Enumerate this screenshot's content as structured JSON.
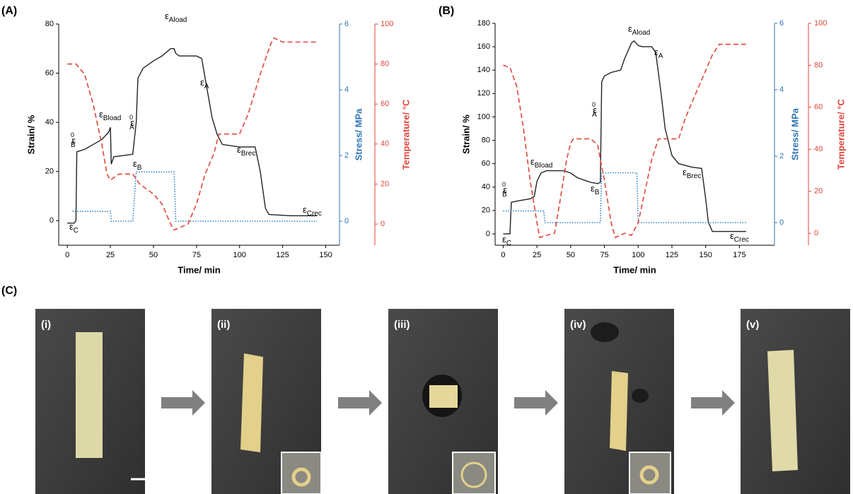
{
  "chart_data": [
    {
      "type": "line",
      "panel_label": "(A)",
      "xlabel": "Time/ min",
      "ylabel": "Strain/ %",
      "y2label": "Stress/ MPa",
      "y3label": "Temperature/ °C",
      "xlim": [
        -5,
        158
      ],
      "xticks": [
        0,
        25,
        50,
        75,
        100,
        125,
        150
      ],
      "ylim": [
        -10,
        80
      ],
      "yticks": [
        0,
        20,
        40,
        60,
        80
      ],
      "y2lim": [
        -0.73,
        6
      ],
      "y2ticks": [
        0,
        2,
        4,
        6
      ],
      "y2color": "#2e75b6",
      "y3lim": [
        -10.6,
        100
      ],
      "y3ticks": [
        0,
        20,
        40,
        60,
        80,
        100
      ],
      "y3color": "#e0453a",
      "series": [
        {
          "color": "#222222",
          "style": "solid",
          "axis": "y",
          "x": [
            0,
            4,
            5,
            5.5,
            10,
            20,
            24,
            25,
            25.5,
            27,
            38,
            40,
            41,
            44,
            50,
            55,
            60,
            62,
            63,
            65,
            75,
            78,
            80,
            84,
            87,
            90,
            100,
            109,
            112,
            115,
            117,
            130,
            145
          ],
          "values": [
            -1,
            -1,
            0,
            28,
            29,
            33,
            36,
            38,
            23,
            26,
            27,
            40,
            58,
            62,
            65,
            67,
            70,
            70,
            68,
            67,
            67,
            66,
            58,
            42,
            35,
            31,
            30,
            30,
            20,
            5,
            2.5,
            2,
            2
          ]
        },
        {
          "color": "#2a7fc1",
          "style": "dotted",
          "axis": "y2",
          "x": [
            3,
            25,
            25.5,
            38,
            40,
            62,
            63,
            145
          ],
          "values": [
            0.3,
            0.3,
            0,
            0,
            1.5,
            1.5,
            0,
            0
          ]
        },
        {
          "color": "#e0453a",
          "style": "dashed",
          "axis": "y3",
          "x": [
            0,
            5,
            10,
            15,
            20,
            23,
            25,
            30,
            38,
            42,
            50,
            55,
            60,
            62,
            70,
            75,
            80,
            85,
            88,
            100,
            105,
            112,
            118,
            120,
            125,
            145
          ],
          "values": [
            80,
            80,
            75,
            60,
            40,
            25,
            22,
            25,
            25,
            20,
            15,
            10,
            0,
            -3,
            0,
            10,
            25,
            35,
            45,
            45,
            55,
            75,
            90,
            93,
            91,
            91
          ]
        }
      ],
      "annotations": [
        {
          "base": "ε",
          "sub": "B",
          "sup": "0"
        },
        {
          "base": "ε",
          "sub": "Bload"
        },
        {
          "base": "ε",
          "sub": "B"
        },
        {
          "base": "ε",
          "sub": "A",
          "sup": "0"
        },
        {
          "base": "ε",
          "sub": "Aload"
        },
        {
          "base": "ε",
          "sub": "A"
        },
        {
          "base": "ε",
          "sub": "Brec"
        },
        {
          "base": "ε",
          "sub": "Crec"
        },
        {
          "base": "ε",
          "sub": "C"
        }
      ]
    },
    {
      "type": "line",
      "panel_label": "(B)",
      "xlabel": "Time/ min",
      "ylabel": "Strain/ %",
      "y2label": "Stress/ MPa",
      "y3label": "Temperature/ °C",
      "xlim": [
        -6,
        201
      ],
      "xticks": [
        0,
        25,
        50,
        75,
        100,
        125,
        150,
        175
      ],
      "ylim": [
        -9.7,
        180
      ],
      "yticks": [
        0,
        20,
        40,
        60,
        80,
        100,
        120,
        140,
        160,
        180
      ],
      "y2lim": [
        -0.68,
        6
      ],
      "y2ticks": [
        0,
        2,
        4,
        6
      ],
      "y2color": "#2e75b6",
      "y3lim": [
        -5.7,
        100
      ],
      "y3ticks": [
        0,
        20,
        40,
        60,
        80,
        100
      ],
      "y3color": "#e0453a",
      "series": [
        {
          "color": "#222222",
          "style": "solid",
          "axis": "y",
          "x": [
            0,
            5,
            6,
            10,
            20,
            23,
            25,
            28,
            32,
            45,
            50,
            55,
            60,
            65,
            70,
            72,
            73,
            75,
            80,
            87,
            90,
            95,
            97,
            100,
            103,
            110,
            113,
            117,
            120,
            125,
            130,
            140,
            147,
            150,
            152,
            155,
            180
          ],
          "values": [
            0,
            0,
            27,
            28,
            30,
            32,
            45,
            52,
            54,
            54,
            52,
            48,
            46,
            44,
            43,
            44,
            130,
            135,
            138,
            140,
            150,
            163,
            165,
            161,
            160,
            160,
            155,
            120,
            90,
            67,
            60,
            57,
            56,
            30,
            10,
            2,
            2
          ]
        },
        {
          "color": "#2a7fc1",
          "style": "dotted",
          "axis": "y2",
          "x": [
            0,
            30,
            31,
            72,
            73,
            99,
            100,
            180
          ],
          "values": [
            0.35,
            0.35,
            0,
            0,
            1.5,
            1.5,
            0,
            0
          ]
        },
        {
          "color": "#e0453a",
          "style": "dashed",
          "axis": "y3",
          "x": [
            0,
            5,
            10,
            15,
            20,
            25,
            27,
            32,
            38,
            42,
            47,
            50,
            52,
            65,
            70,
            75,
            80,
            83,
            90,
            95,
            100,
            105,
            110,
            115,
            130,
            135,
            145,
            155,
            160,
            165,
            180
          ],
          "values": [
            80,
            79,
            70,
            50,
            25,
            5,
            -2,
            -1,
            0,
            15,
            35,
            43,
            45,
            45,
            42,
            25,
            5,
            -2,
            0,
            -1,
            5,
            20,
            35,
            45,
            45,
            55,
            70,
            85,
            90,
            90,
            90
          ]
        }
      ],
      "annotations": [
        {
          "base": "ε",
          "sub": "B",
          "sup": "0"
        },
        {
          "base": "ε",
          "sub": "Bload"
        },
        {
          "base": "ε",
          "sub": "B"
        },
        {
          "base": "ε",
          "sub": "A",
          "sup": "0"
        },
        {
          "base": "ε",
          "sub": "Aload"
        },
        {
          "base": "ε",
          "sub": "A"
        },
        {
          "base": "ε",
          "sub": "Brec"
        },
        {
          "base": "ε",
          "sub": "Crec"
        },
        {
          "base": "ε",
          "sub": "C"
        }
      ]
    }
  ],
  "figure_c": {
    "panel_label": "(C)",
    "photos": [
      "(i)",
      "(ii)",
      "(iii)",
      "(iv)",
      "(v)"
    ]
  }
}
